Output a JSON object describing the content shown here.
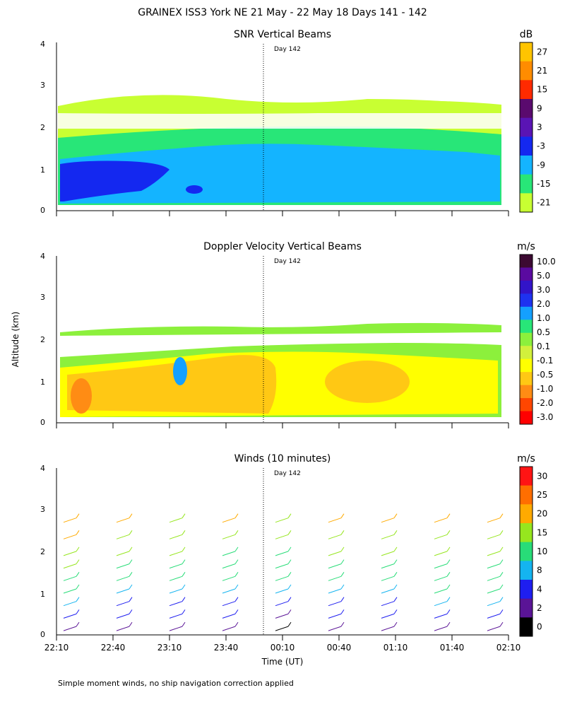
{
  "figure": {
    "title": "GRAINEX ISS3 York NE  21 May - 22 May 18 Days 141 - 142",
    "footnote": "Simple moment winds, no ship navigation correction applied"
  },
  "chart_data": [
    {
      "type": "heatmap",
      "title": "SNR Vertical Beams",
      "ylabel": "",
      "xlabel": "",
      "ylim": [
        0,
        4
      ],
      "yticks": [
        "0",
        "1",
        "2",
        "3",
        "4"
      ],
      "marker_label": "Day 142",
      "colorbar": {
        "unit": "dB",
        "labels": [
          "27",
          "21",
          "15",
          "9",
          "3",
          "-3",
          "-9",
          "-15",
          "-21"
        ],
        "colors": [
          "#ffc400",
          "#ff8c00",
          "#ff2a00",
          "#5a0a6e",
          "#5a14b4",
          "#1428f0",
          "#14b4ff",
          "#28e678",
          "#c8ff32"
        ]
      },
      "notes": "Echo layer 0.1-2.5 km; strongest (-3 dB) near 0.5-1.2 km early in period"
    },
    {
      "type": "heatmap",
      "title": "Doppler Velocity Vertical Beams",
      "ylabel": "Altitude (km)",
      "xlabel": "",
      "ylim": [
        0,
        4
      ],
      "yticks": [
        "0",
        "1",
        "2",
        "3",
        "4"
      ],
      "marker_label": "Day 142",
      "colorbar": {
        "unit": "m/s",
        "labels": [
          "10.0",
          "5.0",
          "3.0",
          "2.0",
          "1.0",
          "0.5",
          "0.1",
          "-0.1",
          "-0.5",
          "-1.0",
          "-2.0",
          "-3.0"
        ],
        "colors": [
          "#3c0a32",
          "#5a0aa0",
          "#3214c8",
          "#1e32f0",
          "#14a0ff",
          "#28e678",
          "#8cf03c",
          "#d2f03c",
          "#ffff00",
          "#ffc814",
          "#ff8c14",
          "#ff4600",
          "#ff0000"
        ]
      }
    },
    {
      "type": "wind-barbs",
      "title": "Winds (10 minutes)",
      "ylabel": "",
      "xlabel": "Time (UT)",
      "ylim": [
        0,
        4
      ],
      "yticks": [
        "0",
        "1",
        "2",
        "3",
        "4"
      ],
      "xticks": [
        "22:10",
        "22:40",
        "23:10",
        "23:40",
        "00:10",
        "00:40",
        "01:10",
        "01:40",
        "02:10"
      ],
      "marker_label": "Day 142",
      "colorbar": {
        "unit": "m/s",
        "labels": [
          "30",
          "25",
          "20",
          "15",
          "10",
          "8",
          "4",
          "2",
          "0"
        ],
        "colors": [
          "#ff1414",
          "#ff6e00",
          "#ffaa00",
          "#96e61e",
          "#28dc78",
          "#14b4f0",
          "#1e1ef0",
          "#5a1496",
          "#000000"
        ]
      },
      "profiles": [
        {
          "time": "22:10",
          "speed_m_s": [
            2,
            5,
            8,
            10,
            12,
            15,
            17,
            20,
            22
          ]
        },
        {
          "time": "22:40",
          "speed_m_s": [
            2,
            4,
            7,
            9,
            11,
            13,
            16,
            18,
            22
          ]
        },
        {
          "time": "23:10",
          "speed_m_s": [
            3,
            4,
            7,
            9,
            11,
            13,
            15,
            17,
            19
          ]
        },
        {
          "time": "23:40",
          "speed_m_s": [
            2,
            4,
            6,
            9,
            11,
            12,
            14,
            17,
            20
          ]
        },
        {
          "time": "00:10",
          "speed_m_s": [
            1,
            3,
            6,
            8,
            10,
            12,
            14,
            16,
            18
          ]
        },
        {
          "time": "00:40",
          "speed_m_s": [
            2,
            4,
            7,
            9,
            11,
            13,
            15,
            18,
            20
          ]
        },
        {
          "time": "01:10",
          "speed_m_s": [
            2,
            5,
            7,
            9,
            11,
            13,
            16,
            18,
            21
          ]
        },
        {
          "time": "01:40",
          "speed_m_s": [
            3,
            5,
            8,
            10,
            12,
            14,
            16,
            19,
            22
          ]
        },
        {
          "time": "02:10",
          "speed_m_s": [
            3,
            6,
            8,
            10,
            12,
            14,
            17,
            19,
            21
          ]
        }
      ]
    }
  ]
}
